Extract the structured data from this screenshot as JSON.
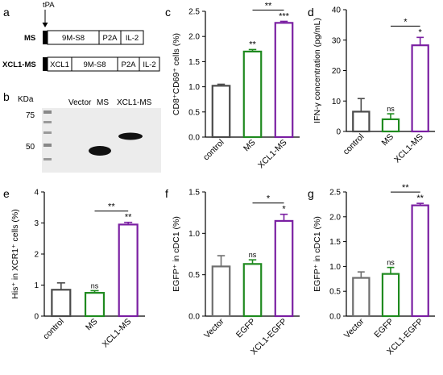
{
  "figure": {
    "panel_letters": [
      "a",
      "b",
      "c",
      "d",
      "e",
      "f",
      "g"
    ]
  },
  "constructs": {
    "tpa_label": "tPA",
    "rows": [
      {
        "name": "MS",
        "segments": [
          "9M-S8",
          "P2A",
          "IL-2"
        ]
      },
      {
        "name": "XCL1-MS",
        "segments": [
          "XCL1",
          "9M-S8",
          "P2A",
          "IL-2"
        ]
      }
    ]
  },
  "blot": {
    "kda_label": "KDa",
    "markers": [
      "75",
      "50"
    ],
    "lanes": [
      "Vector",
      "MS",
      "XCL1-MS"
    ]
  },
  "colors": {
    "control": "#4a4a4a",
    "treatment": "#1f8a1f",
    "xcl1": "#7a1fa2",
    "vector": "#6e6e6e"
  },
  "chart_data": [
    {
      "panel": "c",
      "type": "bar",
      "ylabel": "CD8⁺CD69⁺ cells (%)",
      "ylim": [
        0,
        2.5
      ],
      "yticks": [
        "0.0",
        "0.5",
        "1.0",
        "1.5",
        "2.0",
        "2.5"
      ],
      "categories": [
        "control",
        "MS",
        "XCL1-MS"
      ],
      "values": [
        1.02,
        1.7,
        2.27
      ],
      "errors": [
        0.03,
        0.04,
        0.03
      ],
      "bar_colors": [
        "#4a4a4a",
        "#1f8a1f",
        "#7a1fa2"
      ],
      "above_bar": [
        "",
        "**",
        "***"
      ],
      "brackets": [
        {
          "from": 1,
          "to": 2,
          "label": "**"
        }
      ]
    },
    {
      "panel": "d",
      "type": "bar",
      "ylabel": "IFN-γ concentration (pg/mL)",
      "ylim": [
        0,
        40
      ],
      "yticks": [
        "0",
        "10",
        "20",
        "30",
        "40"
      ],
      "categories": [
        "control",
        "MS",
        "XCL1-MS"
      ],
      "values": [
        6.5,
        4,
        28.3
      ],
      "errors": [
        4.3,
        1.8,
        2.6
      ],
      "bar_colors": [
        "#4a4a4a",
        "#1f8a1f",
        "#7a1fa2"
      ],
      "above_bar": [
        "",
        "ns",
        "*"
      ],
      "brackets": [
        {
          "from": 1,
          "to": 2,
          "label": "*"
        }
      ]
    },
    {
      "panel": "e",
      "type": "bar",
      "ylabel": "His⁺ in XCR1⁺ cells (%)",
      "ylim": [
        0,
        4
      ],
      "yticks": [
        "0",
        "1",
        "2",
        "3",
        "4"
      ],
      "categories": [
        "control",
        "MS",
        "XCL1-MS"
      ],
      "values": [
        0.85,
        0.75,
        2.95
      ],
      "errors": [
        0.22,
        0.07,
        0.07
      ],
      "bar_colors": [
        "#4a4a4a",
        "#1f8a1f",
        "#7a1fa2"
      ],
      "above_bar": [
        "",
        "ns",
        "**"
      ],
      "brackets": [
        {
          "from": 1,
          "to": 2,
          "label": "**"
        }
      ]
    },
    {
      "panel": "f",
      "type": "bar",
      "ylabel": "EGFP⁺ in cDC1 (%)",
      "ylim": [
        0,
        1.5
      ],
      "yticks": [
        "0.0",
        "0.5",
        "1.0",
        "1.5"
      ],
      "categories": [
        "Vector",
        "EGFP",
        "XCL1-EGFP"
      ],
      "values": [
        0.6,
        0.63,
        1.15
      ],
      "errors": [
        0.13,
        0.05,
        0.08
      ],
      "bar_colors": [
        "#6e6e6e",
        "#1f8a1f",
        "#7a1fa2"
      ],
      "above_bar": [
        "",
        "ns",
        "*"
      ],
      "brackets": [
        {
          "from": 1,
          "to": 2,
          "label": "*"
        }
      ]
    },
    {
      "panel": "g",
      "type": "bar",
      "ylabel": "EGFP⁺ in cDC1 (%)",
      "ylim": [
        0,
        2.5
      ],
      "yticks": [
        "0.0",
        "0.5",
        "1.0",
        "1.5",
        "2.0",
        "2.5"
      ],
      "categories": [
        "Vector",
        "EGFP",
        "XCL1-EGFP"
      ],
      "values": [
        0.77,
        0.85,
        2.23
      ],
      "errors": [
        0.12,
        0.13,
        0.04
      ],
      "bar_colors": [
        "#6e6e6e",
        "#1f8a1f",
        "#7a1fa2"
      ],
      "above_bar": [
        "",
        "ns",
        "**"
      ],
      "brackets": [
        {
          "from": 1,
          "to": 2,
          "label": "**"
        }
      ]
    }
  ]
}
